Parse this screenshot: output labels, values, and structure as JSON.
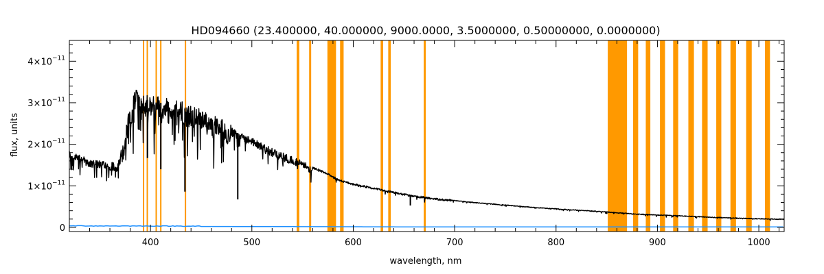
{
  "chart_data": {
    "type": "line",
    "title": "HD094660    (23.400000, 40.000000, 9000.0000, 3.5000000, 0.50000000, 0.0000000)",
    "xlabel": "wavelength, nm",
    "ylabel": "flux, units",
    "xlim": [
      320,
      1025
    ],
    "ylim": [
      -1e-12,
      4.5e-11
    ],
    "x_ticks": [
      400,
      500,
      600,
      700,
      800,
      900,
      1000
    ],
    "x_tick_labels": [
      "400",
      "500",
      "600",
      "700",
      "800",
      "900",
      "1000"
    ],
    "y_ticks": [
      0,
      1e-11,
      2e-11,
      3e-11,
      4e-11
    ],
    "y_tick_labels": [
      {
        "mantissa": "0",
        "exp": ""
      },
      {
        "mantissa": "1×10",
        "exp": "−11"
      },
      {
        "mantissa": "2×10",
        "exp": "−11"
      },
      {
        "mantissa": "3×10",
        "exp": "−11"
      },
      {
        "mantissa": "4×10",
        "exp": "−11"
      }
    ],
    "grid": false,
    "colors": {
      "spectrum": "#000000",
      "error": "#1e90ff",
      "mask": "#ff9900",
      "axis": "#000000"
    },
    "masked_regions_nm": [
      [
        392.5,
        393.8
      ],
      [
        396.2,
        397.5
      ],
      [
        405.0,
        406.3
      ],
      [
        409.5,
        410.8
      ],
      [
        433.8,
        435.2
      ],
      [
        544.2,
        546.8
      ],
      [
        556.5,
        558.5
      ],
      [
        574.5,
        583.0
      ],
      [
        587.0,
        590.5
      ],
      [
        627.0,
        629.5
      ],
      [
        634.5,
        637.0
      ],
      [
        669.5,
        671.5
      ],
      [
        851.0,
        870.0
      ],
      [
        876.0,
        881.0
      ],
      [
        888.5,
        893.0
      ],
      [
        902.5,
        907.5
      ],
      [
        915.5,
        920.5
      ],
      [
        930.5,
        936.0
      ],
      [
        944.0,
        949.5
      ],
      [
        958.0,
        963.0
      ],
      [
        972.0,
        977.5
      ],
      [
        987.5,
        993.0
      ],
      [
        1006.0,
        1011.0
      ]
    ],
    "series": [
      {
        "name": "flux",
        "x": [
          320,
          330,
          340,
          350,
          360,
          368,
          372,
          378,
          385,
          392,
          400,
          410,
          420,
          430,
          440,
          450,
          460,
          480,
          500,
          520,
          540,
          560,
          575,
          585,
          600,
          620,
          640,
          660,
          680,
          700,
          720,
          740,
          760,
          780,
          800,
          820,
          840,
          852,
          875,
          900,
          925,
          950,
          975,
          1000,
          1025
        ],
        "y": [
          1.85e-11,
          1.7e-11,
          1.6e-11,
          1.55e-11,
          1.52e-11,
          1.5e-11,
          1.9e-11,
          2.6e-11,
          3.2e-11,
          3.1e-11,
          3.05e-11,
          3e-11,
          2.95e-11,
          2.9e-11,
          2.8e-11,
          2.7e-11,
          2.6e-11,
          2.35e-11,
          2.1e-11,
          1.85e-11,
          1.65e-11,
          1.45e-11,
          1.3e-11,
          1.15e-11,
          1.05e-11,
          9.5e-12,
          8.5e-12,
          7.6e-12,
          7e-12,
          6.5e-12,
          6e-12,
          5.6e-12,
          5.2e-12,
          4.8e-12,
          4.5e-12,
          4.2e-12,
          3.9e-12,
          3.7e-12,
          3.3e-12,
          3e-12,
          2.8e-12,
          2.5e-12,
          2.3e-12,
          2.1e-12,
          2e-12
        ]
      },
      {
        "name": "error",
        "x": [
          320,
          500,
          700,
          1025
        ],
        "y": [
          3e-13,
          2e-13,
          1e-13,
          1e-13
        ]
      }
    ],
    "absorption_lines_nm": [
      {
        "x": 383.5,
        "depth": 5.5e-12
      },
      {
        "x": 388.9,
        "depth": 8e-12
      },
      {
        "x": 397.0,
        "depth": 1.4e-11
      },
      {
        "x": 410.2,
        "depth": 1.6e-11
      },
      {
        "x": 434.0,
        "depth": 2e-11
      },
      {
        "x": 486.1,
        "depth": 1.6e-11
      },
      {
        "x": 656.3,
        "depth": 2.5e-12
      },
      {
        "x": 850.0,
        "depth": 5e-13
      }
    ]
  }
}
